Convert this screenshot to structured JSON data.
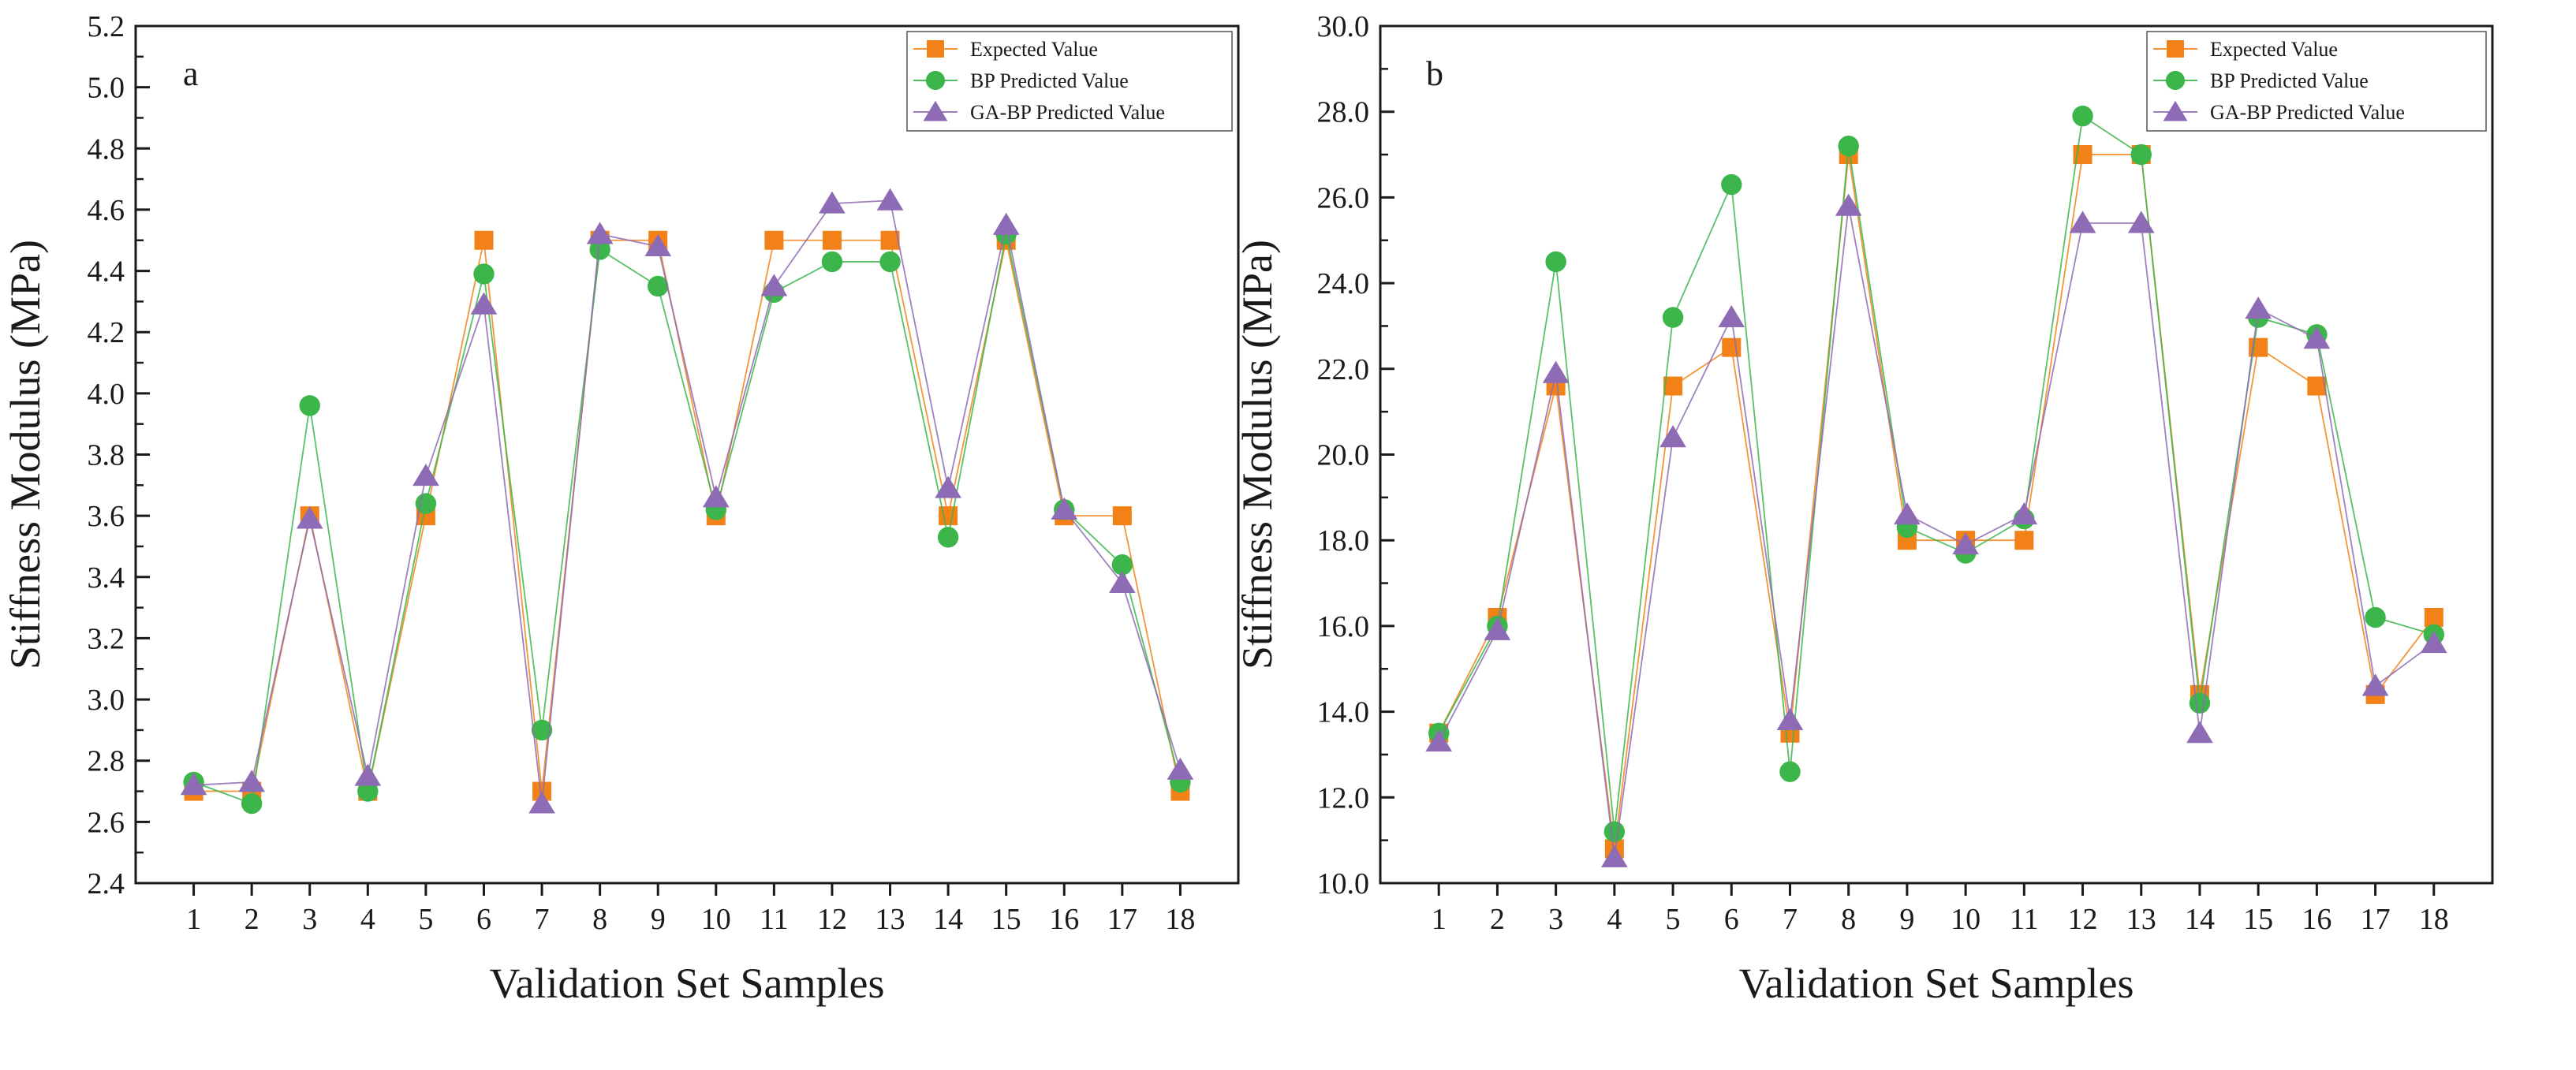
{
  "colors": {
    "expected": "#f28218",
    "bp": "#3cb54a",
    "gabp": "#8e6bb5",
    "axis": "#1a1a1a"
  },
  "chart_data": [
    {
      "type": "line",
      "panel_label": "a",
      "title": "",
      "xlabel": "Validation Set Samples",
      "ylabel": "Stiffness Modulus (MPa)",
      "ylim": [
        2.4,
        5.2
      ],
      "xlim": [
        0,
        19
      ],
      "grid": false,
      "legend_position": "top-right",
      "x": [
        1,
        2,
        3,
        4,
        5,
        6,
        7,
        8,
        9,
        10,
        11,
        12,
        13,
        14,
        15,
        16,
        17,
        18
      ],
      "x_tick_labels": [
        "1",
        "2",
        "3",
        "4",
        "5",
        "6",
        "7",
        "8",
        "9",
        "10",
        "11",
        "12",
        "13",
        "14",
        "15",
        "16",
        "17",
        "18"
      ],
      "y_ticks": [
        2.4,
        2.6,
        2.8,
        3.0,
        3.2,
        3.4,
        3.6,
        3.8,
        4.0,
        4.2,
        4.4,
        4.6,
        4.8,
        5.0,
        5.2
      ],
      "y_tick_labels": [
        "2.4",
        "2.6",
        "2.8",
        "3.0",
        "3.2",
        "3.4",
        "3.6",
        "3.8",
        "4.0",
        "4.2",
        "4.4",
        "4.6",
        "4.8",
        "5.0",
        "5.2"
      ],
      "series": [
        {
          "name": "Expected Value",
          "marker": "square",
          "color_key": "expected",
          "values": [
            2.7,
            2.7,
            3.6,
            2.7,
            3.6,
            4.5,
            2.7,
            4.5,
            4.5,
            3.6,
            4.5,
            4.5,
            4.5,
            3.6,
            4.5,
            3.6,
            3.6,
            2.7
          ]
        },
        {
          "name": "BP Predicted Value",
          "marker": "circle",
          "color_key": "bp",
          "values": [
            2.73,
            2.66,
            3.96,
            2.7,
            3.64,
            4.39,
            2.9,
            4.47,
            4.35,
            3.62,
            4.33,
            4.43,
            4.43,
            3.53,
            4.52,
            3.62,
            3.44,
            2.73
          ]
        },
        {
          "name": "GA-BP Predicted Value",
          "marker": "triangle",
          "color_key": "gabp",
          "values": [
            2.72,
            2.73,
            3.59,
            2.75,
            3.73,
            4.29,
            2.66,
            4.52,
            4.48,
            3.66,
            4.35,
            4.62,
            4.63,
            3.69,
            4.55,
            3.62,
            3.38,
            2.77
          ]
        }
      ]
    },
    {
      "type": "line",
      "panel_label": "b",
      "title": "",
      "xlabel": "Validation Set Samples",
      "ylabel": "Stiffness Modulus (MPa)",
      "ylim": [
        10.0,
        30.0
      ],
      "xlim": [
        0,
        19
      ],
      "grid": false,
      "legend_position": "top-right",
      "x": [
        1,
        2,
        3,
        4,
        5,
        6,
        7,
        8,
        9,
        10,
        11,
        12,
        13,
        14,
        15,
        16,
        17,
        18
      ],
      "x_tick_labels": [
        "1",
        "2",
        "3",
        "4",
        "5",
        "6",
        "7",
        "8",
        "9",
        "10",
        "11",
        "12",
        "13",
        "14",
        "15",
        "16",
        "17",
        "18"
      ],
      "y_ticks": [
        10,
        12,
        14,
        16,
        18,
        20,
        22,
        24,
        26,
        28,
        30
      ],
      "y_tick_labels": [
        "10.0",
        "12.0",
        "14.0",
        "16.0",
        "18.0",
        "20.0",
        "22.0",
        "24.0",
        "26.0",
        "28.0",
        "30.0"
      ],
      "series": [
        {
          "name": "Expected Value",
          "marker": "square",
          "color_key": "expected",
          "values": [
            13.5,
            16.2,
            21.6,
            10.8,
            21.6,
            22.5,
            13.5,
            27.0,
            18.0,
            18.0,
            18.0,
            27.0,
            27.0,
            14.4,
            22.5,
            21.6,
            14.4,
            16.2
          ]
        },
        {
          "name": "BP Predicted Value",
          "marker": "circle",
          "color_key": "bp",
          "values": [
            13.5,
            16.0,
            24.5,
            11.2,
            23.2,
            26.3,
            12.6,
            27.2,
            18.3,
            17.7,
            18.5,
            27.9,
            27.0,
            14.2,
            23.2,
            22.8,
            16.2,
            15.8
          ]
        },
        {
          "name": "GA-BP Predicted Value",
          "marker": "triangle",
          "color_key": "gabp",
          "values": [
            13.3,
            15.9,
            21.9,
            10.6,
            20.4,
            23.2,
            13.8,
            25.8,
            18.6,
            17.9,
            18.6,
            25.4,
            25.4,
            13.5,
            23.4,
            22.7,
            14.6,
            15.6
          ]
        }
      ]
    }
  ]
}
